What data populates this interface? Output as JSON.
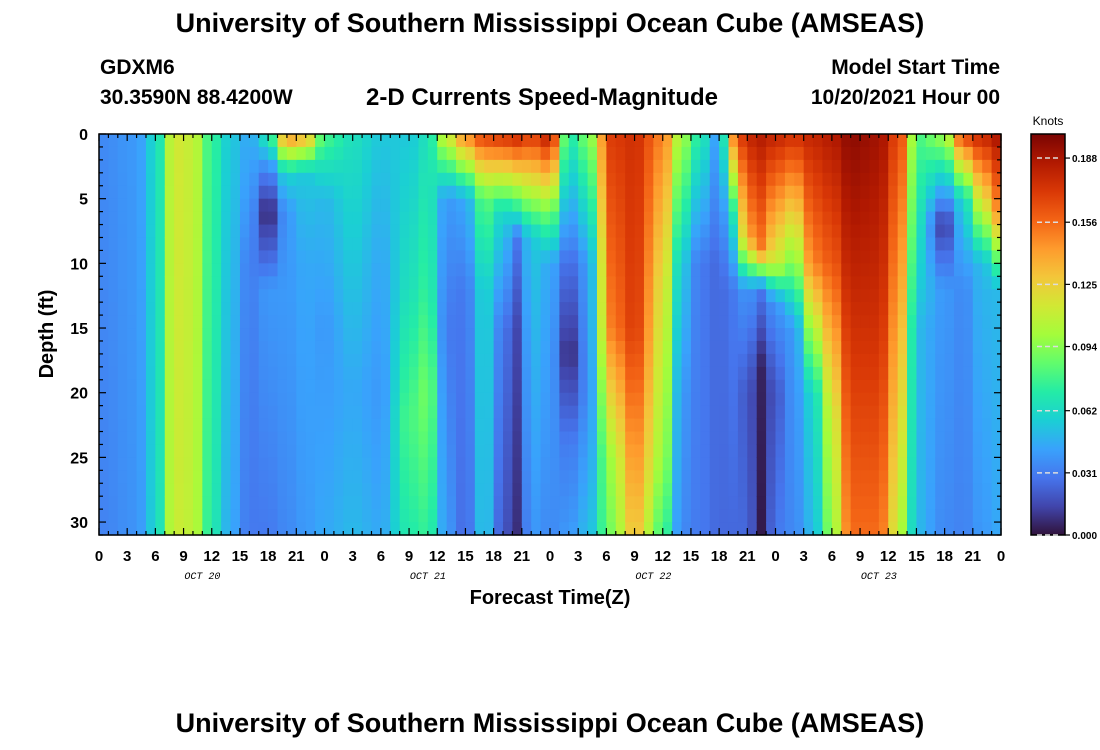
{
  "header": {
    "title": "University of Southern Mississippi Ocean Cube (AMSEAS)",
    "station": "GDXM6",
    "coords": "30.3590N  88.4200W",
    "subtitle": "2-D Currents Speed-Magnitude",
    "start_label": "Model Start Time",
    "start_value": "10/20/2021 Hour 00"
  },
  "footer": {
    "title": "University of Southern Mississippi Ocean Cube (AMSEAS)"
  },
  "chart_data": {
    "type": "heatmap",
    "title": "2-D Currents Speed-Magnitude",
    "xlabel": "Forecast Time(Z)",
    "ylabel": "Depth (ft)",
    "x_hours_range": [
      0,
      96
    ],
    "x_ticks": [
      {
        "hour": 0,
        "label": "0"
      },
      {
        "hour": 3,
        "label": "3"
      },
      {
        "hour": 6,
        "label": "6"
      },
      {
        "hour": 9,
        "label": "9"
      },
      {
        "hour": 12,
        "label": "12"
      },
      {
        "hour": 15,
        "label": "15"
      },
      {
        "hour": 18,
        "label": "18"
      },
      {
        "hour": 21,
        "label": "21"
      },
      {
        "hour": 24,
        "label": "0"
      },
      {
        "hour": 27,
        "label": "3"
      },
      {
        "hour": 30,
        "label": "6"
      },
      {
        "hour": 33,
        "label": "9"
      },
      {
        "hour": 36,
        "label": "12"
      },
      {
        "hour": 39,
        "label": "15"
      },
      {
        "hour": 42,
        "label": "18"
      },
      {
        "hour": 45,
        "label": "21"
      },
      {
        "hour": 48,
        "label": "0"
      },
      {
        "hour": 51,
        "label": "3"
      },
      {
        "hour": 54,
        "label": "6"
      },
      {
        "hour": 57,
        "label": "9"
      },
      {
        "hour": 60,
        "label": "12"
      },
      {
        "hour": 63,
        "label": "15"
      },
      {
        "hour": 66,
        "label": "18"
      },
      {
        "hour": 69,
        "label": "21"
      },
      {
        "hour": 72,
        "label": "0"
      },
      {
        "hour": 75,
        "label": "3"
      },
      {
        "hour": 78,
        "label": "6"
      },
      {
        "hour": 81,
        "label": "9"
      },
      {
        "hour": 84,
        "label": "12"
      },
      {
        "hour": 87,
        "label": "15"
      },
      {
        "hour": 90,
        "label": "18"
      },
      {
        "hour": 93,
        "label": "21"
      },
      {
        "hour": 96,
        "label": "0"
      }
    ],
    "date_labels": [
      {
        "hour": 11,
        "label": "OCT 20"
      },
      {
        "hour": 35,
        "label": "OCT 21"
      },
      {
        "hour": 59,
        "label": "OCT 22"
      },
      {
        "hour": 83,
        "label": "OCT 23"
      }
    ],
    "y_ticks": [
      0,
      5,
      10,
      15,
      20,
      25,
      30
    ],
    "ylim": [
      0,
      31
    ],
    "colorbar": {
      "label": "Knots",
      "ticks": [
        "0.000",
        "0.031",
        "0.062",
        "0.094",
        "0.125",
        "0.156",
        "0.188"
      ],
      "range": [
        0,
        0.2
      ],
      "colors": [
        "#30123b",
        "#4145ab",
        "#4675ed",
        "#39a2fc",
        "#1bcfd4",
        "#24eca6",
        "#61fc6c",
        "#a4fc3b",
        "#d1e834",
        "#f3c63a",
        "#fe9b2d",
        "#f36315",
        "#d93806",
        "#b11901",
        "#7a0403"
      ]
    },
    "columns": [
      {
        "hour": 0,
        "profile": [
          [
            0,
            0.035
          ],
          [
            31,
            0.033
          ]
        ]
      },
      {
        "hour": 4,
        "profile": [
          [
            0,
            0.04
          ],
          [
            31,
            0.038
          ]
        ]
      },
      {
        "hour": 6,
        "profile": [
          [
            0,
            0.06
          ],
          [
            31,
            0.058
          ]
        ]
      },
      {
        "hour": 8,
        "profile": [
          [
            0,
            0.115
          ],
          [
            31,
            0.112
          ]
        ]
      },
      {
        "hour": 10,
        "profile": [
          [
            0,
            0.11
          ],
          [
            31,
            0.108
          ]
        ]
      },
      {
        "hour": 12,
        "profile": [
          [
            0,
            0.075
          ],
          [
            31,
            0.07
          ]
        ]
      },
      {
        "hour": 14,
        "profile": [
          [
            0,
            0.055
          ],
          [
            31,
            0.045
          ]
        ]
      },
      {
        "hour": 16,
        "profile": [
          [
            0,
            0.045
          ],
          [
            5,
            0.04
          ],
          [
            10,
            0.032
          ],
          [
            31,
            0.03
          ]
        ]
      },
      {
        "hour": 18,
        "profile": [
          [
            0,
            0.07
          ],
          [
            3,
            0.03
          ],
          [
            6,
            0.003
          ],
          [
            9,
            0.02
          ],
          [
            12,
            0.04
          ],
          [
            31,
            0.03
          ]
        ]
      },
      {
        "hour": 20,
        "profile": [
          [
            0,
            0.15
          ],
          [
            3,
            0.06
          ],
          [
            6,
            0.04
          ],
          [
            12,
            0.04
          ],
          [
            31,
            0.035
          ]
        ]
      },
      {
        "hour": 22,
        "profile": [
          [
            0,
            0.14
          ],
          [
            3,
            0.055
          ],
          [
            10,
            0.045
          ],
          [
            31,
            0.04
          ]
        ]
      },
      {
        "hour": 24,
        "profile": [
          [
            0,
            0.08
          ],
          [
            5,
            0.05
          ],
          [
            15,
            0.04
          ],
          [
            31,
            0.045
          ]
        ]
      },
      {
        "hour": 27,
        "profile": [
          [
            0,
            0.065
          ],
          [
            10,
            0.055
          ],
          [
            20,
            0.045
          ],
          [
            31,
            0.05
          ]
        ]
      },
      {
        "hour": 30,
        "profile": [
          [
            0,
            0.055
          ],
          [
            10,
            0.045
          ],
          [
            20,
            0.04
          ],
          [
            31,
            0.045
          ]
        ]
      },
      {
        "hour": 33,
        "profile": [
          [
            0,
            0.055
          ],
          [
            12,
            0.065
          ],
          [
            22,
            0.08
          ],
          [
            31,
            0.07
          ]
        ]
      },
      {
        "hour": 35,
        "profile": [
          [
            0,
            0.065
          ],
          [
            12,
            0.075
          ],
          [
            20,
            0.09
          ],
          [
            31,
            0.075
          ]
        ]
      },
      {
        "hour": 37,
        "profile": [
          [
            0,
            0.115
          ],
          [
            5,
            0.04
          ],
          [
            15,
            0.03
          ],
          [
            31,
            0.04
          ]
        ]
      },
      {
        "hour": 39,
        "profile": [
          [
            0,
            0.15
          ],
          [
            5,
            0.045
          ],
          [
            12,
            0.03
          ],
          [
            31,
            0.025
          ]
        ]
      },
      {
        "hour": 41,
        "profile": [
          [
            0,
            0.17
          ],
          [
            5,
            0.085
          ],
          [
            12,
            0.06
          ],
          [
            31,
            0.055
          ]
        ]
      },
      {
        "hour": 43,
        "profile": [
          [
            0,
            0.175
          ],
          [
            6,
            0.06
          ],
          [
            15,
            0.03
          ],
          [
            31,
            0.02
          ]
        ]
      },
      {
        "hour": 44.5,
        "profile": [
          [
            0,
            0.18
          ],
          [
            8,
            0.03
          ],
          [
            15,
            0.015
          ],
          [
            31,
            0.008
          ]
        ]
      },
      {
        "hour": 46,
        "profile": [
          [
            0,
            0.17
          ],
          [
            8,
            0.055
          ],
          [
            31,
            0.04
          ]
        ]
      },
      {
        "hour": 48,
        "profile": [
          [
            0,
            0.185
          ],
          [
            6,
            0.09
          ],
          [
            10,
            0.045
          ],
          [
            31,
            0.035
          ]
        ]
      },
      {
        "hour": 50,
        "profile": [
          [
            0,
            0.07
          ],
          [
            10,
            0.025
          ],
          [
            17,
            0.005
          ],
          [
            24,
            0.03
          ],
          [
            31,
            0.04
          ]
        ]
      },
      {
        "hour": 52,
        "profile": [
          [
            0,
            0.09
          ],
          [
            10,
            0.04
          ],
          [
            20,
            0.035
          ],
          [
            31,
            0.05
          ]
        ]
      },
      {
        "hour": 54.5,
        "profile": [
          [
            0,
            0.17
          ],
          [
            15,
            0.15
          ],
          [
            25,
            0.1
          ],
          [
            31,
            0.09
          ]
        ]
      },
      {
        "hour": 57,
        "profile": [
          [
            0,
            0.175
          ],
          [
            15,
            0.17
          ],
          [
            31,
            0.13
          ]
        ]
      },
      {
        "hour": 60,
        "profile": [
          [
            0,
            0.15
          ],
          [
            12,
            0.12
          ],
          [
            25,
            0.1
          ],
          [
            31,
            0.08
          ]
        ]
      },
      {
        "hour": 62,
        "profile": [
          [
            0,
            0.1
          ],
          [
            10,
            0.055
          ],
          [
            20,
            0.04
          ],
          [
            31,
            0.035
          ]
        ]
      },
      {
        "hour": 64,
        "profile": [
          [
            0,
            0.07
          ],
          [
            10,
            0.03
          ],
          [
            31,
            0.03
          ]
        ]
      },
      {
        "hour": 66,
        "profile": [
          [
            0,
            0.04
          ],
          [
            10,
            0.025
          ],
          [
            31,
            0.025
          ]
        ]
      },
      {
        "hour": 67.5,
        "profile": [
          [
            0,
            0.15
          ],
          [
            6,
            0.07
          ],
          [
            12,
            0.03
          ],
          [
            31,
            0.025
          ]
        ]
      },
      {
        "hour": 69,
        "profile": [
          [
            0,
            0.18
          ],
          [
            8,
            0.14
          ],
          [
            12,
            0.04
          ],
          [
            20,
            0.02
          ],
          [
            31,
            0.025
          ]
        ]
      },
      {
        "hour": 70.5,
        "profile": [
          [
            0,
            0.185
          ],
          [
            9,
            0.15
          ],
          [
            12,
            0.03
          ],
          [
            18,
            0.005
          ],
          [
            31,
            0.002
          ]
        ]
      },
      {
        "hour": 72,
        "profile": [
          [
            0,
            0.18
          ],
          [
            10,
            0.11
          ],
          [
            13,
            0.04
          ],
          [
            20,
            0.02
          ],
          [
            31,
            0.03
          ]
        ]
      },
      {
        "hour": 74,
        "profile": [
          [
            0,
            0.175
          ],
          [
            10,
            0.09
          ],
          [
            15,
            0.04
          ],
          [
            31,
            0.035
          ]
        ]
      },
      {
        "hour": 76,
        "profile": [
          [
            0,
            0.18
          ],
          [
            10,
            0.15
          ],
          [
            20,
            0.06
          ],
          [
            31,
            0.05
          ]
        ]
      },
      {
        "hour": 78,
        "profile": [
          [
            0,
            0.185
          ],
          [
            10,
            0.16
          ],
          [
            22,
            0.11
          ],
          [
            31,
            0.095
          ]
        ]
      },
      {
        "hour": 80,
        "profile": [
          [
            0,
            0.195
          ],
          [
            15,
            0.175
          ],
          [
            31,
            0.155
          ]
        ]
      },
      {
        "hour": 83,
        "profile": [
          [
            0,
            0.19
          ],
          [
            15,
            0.175
          ],
          [
            31,
            0.155
          ]
        ]
      },
      {
        "hour": 85.5,
        "profile": [
          [
            0,
            0.16
          ],
          [
            15,
            0.13
          ],
          [
            31,
            0.1
          ]
        ]
      },
      {
        "hour": 87,
        "profile": [
          [
            0,
            0.08
          ],
          [
            15,
            0.05
          ],
          [
            31,
            0.05
          ]
        ]
      },
      {
        "hour": 90,
        "profile": [
          [
            0,
            0.1
          ],
          [
            7,
            0.01
          ],
          [
            12,
            0.04
          ],
          [
            31,
            0.035
          ]
        ]
      },
      {
        "hour": 92,
        "profile": [
          [
            0,
            0.17
          ],
          [
            5,
            0.06
          ],
          [
            12,
            0.035
          ],
          [
            31,
            0.033
          ]
        ]
      },
      {
        "hour": 94,
        "profile": [
          [
            0,
            0.18
          ],
          [
            5,
            0.12
          ],
          [
            10,
            0.05
          ],
          [
            31,
            0.04
          ]
        ]
      },
      {
        "hour": 96,
        "profile": [
          [
            0,
            0.19
          ],
          [
            6,
            0.15
          ],
          [
            12,
            0.05
          ],
          [
            31,
            0.045
          ]
        ]
      }
    ]
  }
}
